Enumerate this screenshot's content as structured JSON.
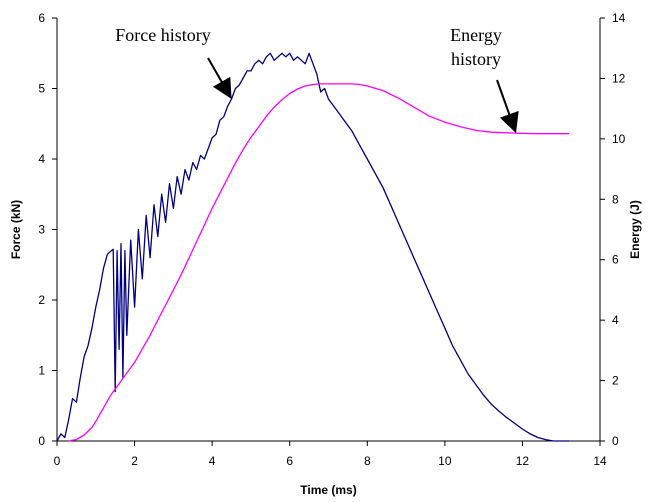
{
  "chart_data": {
    "type": "line",
    "title": "",
    "xlabel": "Time (ms)",
    "ylabel_left": "Force (kN)",
    "ylabel_right": "Energy (J)",
    "xlim": [
      0,
      14
    ],
    "ylim_left": [
      0,
      6
    ],
    "ylim_right": [
      0,
      14
    ],
    "x_ticks": [
      "0",
      "2",
      "4",
      "6",
      "8",
      "10",
      "12",
      "14"
    ],
    "y_left_ticks": [
      "0",
      "1",
      "2",
      "3",
      "4",
      "5",
      "6"
    ],
    "y_right_ticks": [
      "0",
      "2",
      "4",
      "6",
      "8",
      "10",
      "12",
      "14"
    ],
    "grid": false,
    "legend": "none",
    "series": [
      {
        "name": "Force history",
        "axis": "left",
        "color": "#000080",
        "x": [
          0,
          0.1,
          0.2,
          0.3,
          0.4,
          0.5,
          0.6,
          0.7,
          0.8,
          0.9,
          1.0,
          1.1,
          1.2,
          1.3,
          1.4,
          1.45,
          1.5,
          1.55,
          1.6,
          1.65,
          1.7,
          1.75,
          1.8,
          1.9,
          2.0,
          2.1,
          2.2,
          2.3,
          2.4,
          2.5,
          2.6,
          2.7,
          2.8,
          2.9,
          3.0,
          3.1,
          3.2,
          3.3,
          3.4,
          3.5,
          3.6,
          3.7,
          3.8,
          3.9,
          4.0,
          4.1,
          4.2,
          4.3,
          4.4,
          4.5,
          4.6,
          4.7,
          4.8,
          4.9,
          5.0,
          5.1,
          5.2,
          5.3,
          5.4,
          5.5,
          5.6,
          5.7,
          5.8,
          5.9,
          6.0,
          6.1,
          6.2,
          6.3,
          6.4,
          6.5,
          6.6,
          6.7,
          6.8,
          6.9,
          7.0,
          7.2,
          7.4,
          7.6,
          7.8,
          8.0,
          8.2,
          8.4,
          8.6,
          8.8,
          9.0,
          9.2,
          9.4,
          9.6,
          9.8,
          10.0,
          10.2,
          10.4,
          10.6,
          10.8,
          11.0,
          11.2,
          11.4,
          11.6,
          11.8,
          12.0,
          12.2,
          12.4,
          12.6,
          12.8,
          13.0,
          13.2
        ],
        "values": [
          0.0,
          0.1,
          0.05,
          0.3,
          0.6,
          0.55,
          0.9,
          1.2,
          1.35,
          1.6,
          1.9,
          2.15,
          2.45,
          2.65,
          2.7,
          2.72,
          0.7,
          2.7,
          1.3,
          2.8,
          0.9,
          2.7,
          1.5,
          2.85,
          1.9,
          3.0,
          2.3,
          3.2,
          2.6,
          3.35,
          2.9,
          3.5,
          3.1,
          3.65,
          3.3,
          3.75,
          3.5,
          3.85,
          3.7,
          3.95,
          3.85,
          4.05,
          4.0,
          4.15,
          4.3,
          4.35,
          4.55,
          4.6,
          4.75,
          4.85,
          5.0,
          5.05,
          5.15,
          5.25,
          5.25,
          5.35,
          5.4,
          5.35,
          5.45,
          5.5,
          5.4,
          5.45,
          5.5,
          5.45,
          5.5,
          5.4,
          5.45,
          5.4,
          5.35,
          5.5,
          5.35,
          5.2,
          4.95,
          5.0,
          4.85,
          4.7,
          4.55,
          4.4,
          4.2,
          4.0,
          3.8,
          3.6,
          3.35,
          3.1,
          2.85,
          2.6,
          2.35,
          2.1,
          1.85,
          1.6,
          1.35,
          1.15,
          0.95,
          0.8,
          0.65,
          0.52,
          0.42,
          0.33,
          0.25,
          0.17,
          0.1,
          0.05,
          0.02,
          0.0,
          0.0,
          0.0
        ]
      },
      {
        "name": "Energy history",
        "axis": "right",
        "color": "#ff00ff",
        "x": [
          0.3,
          0.5,
          0.7,
          0.9,
          1.0,
          1.2,
          1.4,
          1.6,
          1.8,
          2.0,
          2.2,
          2.4,
          2.6,
          2.8,
          3.0,
          3.2,
          3.4,
          3.6,
          3.8,
          4.0,
          4.2,
          4.4,
          4.6,
          4.8,
          5.0,
          5.2,
          5.4,
          5.6,
          5.8,
          6.0,
          6.2,
          6.4,
          6.6,
          6.8,
          7.0,
          7.2,
          7.4,
          7.6,
          7.8,
          8.0,
          8.4,
          8.8,
          9.2,
          9.6,
          10.0,
          10.4,
          10.8,
          11.2,
          11.6,
          12.0,
          12.4,
          12.8,
          13.2
        ],
        "values": [
          0.0,
          0.05,
          0.2,
          0.45,
          0.65,
          1.1,
          1.55,
          1.9,
          2.25,
          2.6,
          3.05,
          3.5,
          4.0,
          4.5,
          5.0,
          5.5,
          6.05,
          6.6,
          7.15,
          7.7,
          8.2,
          8.7,
          9.2,
          9.65,
          10.05,
          10.4,
          10.75,
          11.05,
          11.3,
          11.5,
          11.65,
          11.75,
          11.8,
          11.82,
          11.82,
          11.82,
          11.82,
          11.82,
          11.8,
          11.75,
          11.6,
          11.35,
          11.05,
          10.75,
          10.55,
          10.4,
          10.28,
          10.22,
          10.2,
          10.18,
          10.17,
          10.17,
          10.17
        ]
      }
    ],
    "annotations": [
      {
        "text": "Force history",
        "target_x": 4.45,
        "target_y_left": 4.9,
        "arrow_from": "upper-left"
      },
      {
        "text": "Energy",
        "text2": "history",
        "target_x": 11.8,
        "target_y_right": 10.25,
        "arrow_from": "upper-left"
      }
    ]
  }
}
